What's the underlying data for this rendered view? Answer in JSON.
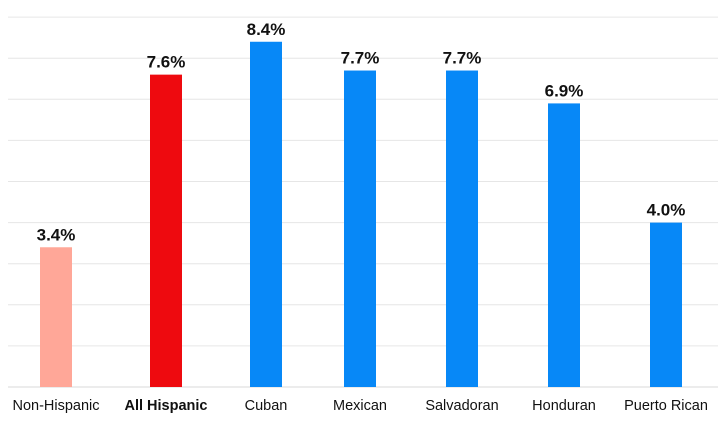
{
  "chart_data": {
    "type": "bar",
    "categories": [
      "Non-Hispanic",
      "All Hispanic",
      "Cuban",
      "Mexican",
      "Salvadoran",
      "Honduran",
      "Puerto Rican"
    ],
    "values": [
      3.4,
      7.6,
      8.4,
      7.7,
      7.7,
      6.9,
      4.0
    ],
    "value_labels": [
      "3.4%",
      "7.6%",
      "8.4%",
      "7.7%",
      "7.7%",
      "6.9%",
      "4.0%"
    ],
    "bold_categories": [
      "All Hispanic"
    ],
    "bar_colors": [
      "#ffa798",
      "#ee0a0f",
      "#0788f7",
      "#0788f7",
      "#0788f7",
      "#0788f7",
      "#0788f7"
    ],
    "title": "",
    "xlabel": "",
    "ylabel": "",
    "ylim": [
      0,
      9
    ],
    "grid": true,
    "legend": "none"
  }
}
